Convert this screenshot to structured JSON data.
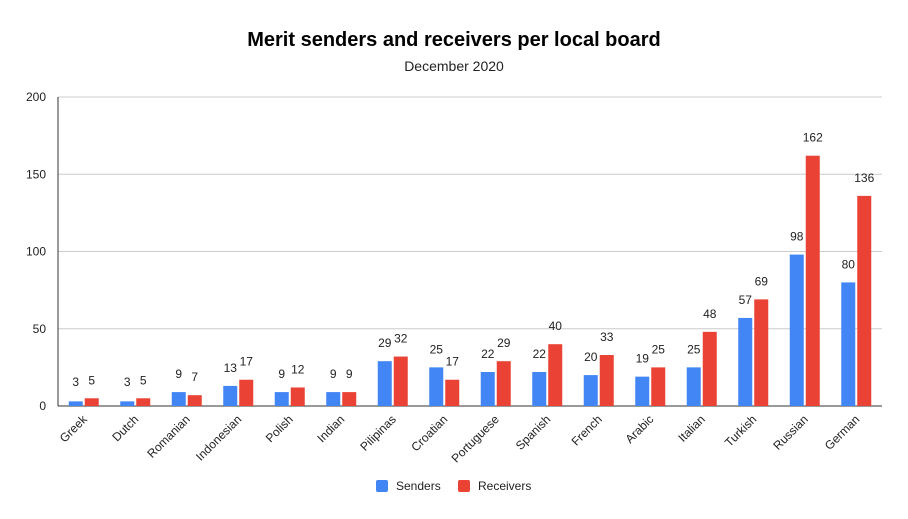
{
  "chart_data": {
    "type": "bar",
    "title": "Merit senders and receivers per local board",
    "subtitle": "December 2020",
    "xlabel": "",
    "ylabel": "",
    "ylim": [
      0,
      200
    ],
    "yticks": [
      0,
      50,
      100,
      150,
      200
    ],
    "grid": true,
    "legend_position": "bottom",
    "categories": [
      "Greek",
      "Dutch",
      "Romanian",
      "Indonesian",
      "Polish",
      "Indian",
      "Pilipinas",
      "Croatian",
      "Portuguese",
      "Spanish",
      "French",
      "Arabic",
      "Italian",
      "Turkish",
      "Russian",
      "German"
    ],
    "series": [
      {
        "name": "Senders",
        "color": "#4285f4",
        "values": [
          3,
          3,
          9,
          13,
          9,
          9,
          29,
          25,
          22,
          22,
          20,
          19,
          25,
          57,
          98,
          80
        ]
      },
      {
        "name": "Receivers",
        "color": "#ea4335",
        "values": [
          5,
          5,
          7,
          17,
          12,
          9,
          32,
          17,
          29,
          40,
          33,
          25,
          48,
          69,
          162,
          136
        ]
      }
    ]
  }
}
